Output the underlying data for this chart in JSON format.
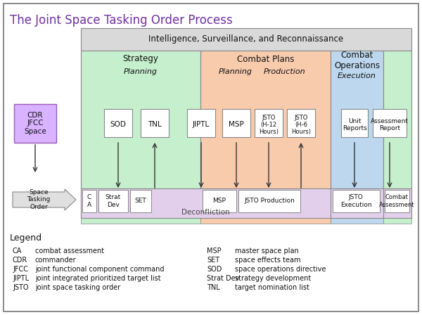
{
  "title": "The Joint Space Tasking Order Process",
  "title_color": "#7030A0",
  "bg_color": "#FFFFFF",
  "isr_label": "Intelligence, Surveillance, and Reconnaissance",
  "isr_bg": "#D9D9D9",
  "strategy_label": "Strategy",
  "strategy_bg": "#C6EFCE",
  "combat_plans_label": "Combat Plans",
  "combat_plans_bg": "#F8CBAD",
  "combat_ops_label": "Combat\nOperations",
  "combat_ops_bg": "#BDD7EE",
  "combat_ops2_bg": "#C6EFCE",
  "deconf_bg": "#E2CFEC",
  "jsto_exec_bg": "#E2CFEC",
  "cdr_box_bg": "#D9B3FF",
  "legend_title": "Legend",
  "legend_left": [
    [
      "CA",
      "combat assessment"
    ],
    [
      "CDR",
      "commander"
    ],
    [
      "JFCC",
      "joint functional component command"
    ],
    [
      "JIPTL",
      "joint integrated prioritized target list"
    ],
    [
      "JSTO",
      "joint space tasking order"
    ]
  ],
  "legend_right": [
    [
      "MSP",
      "master space plan"
    ],
    [
      "SET",
      "space effects team"
    ],
    [
      "SOD",
      "space operations directive"
    ],
    [
      "Strat Dev",
      "strategy development"
    ],
    [
      "TNL",
      "target nomination list"
    ]
  ]
}
